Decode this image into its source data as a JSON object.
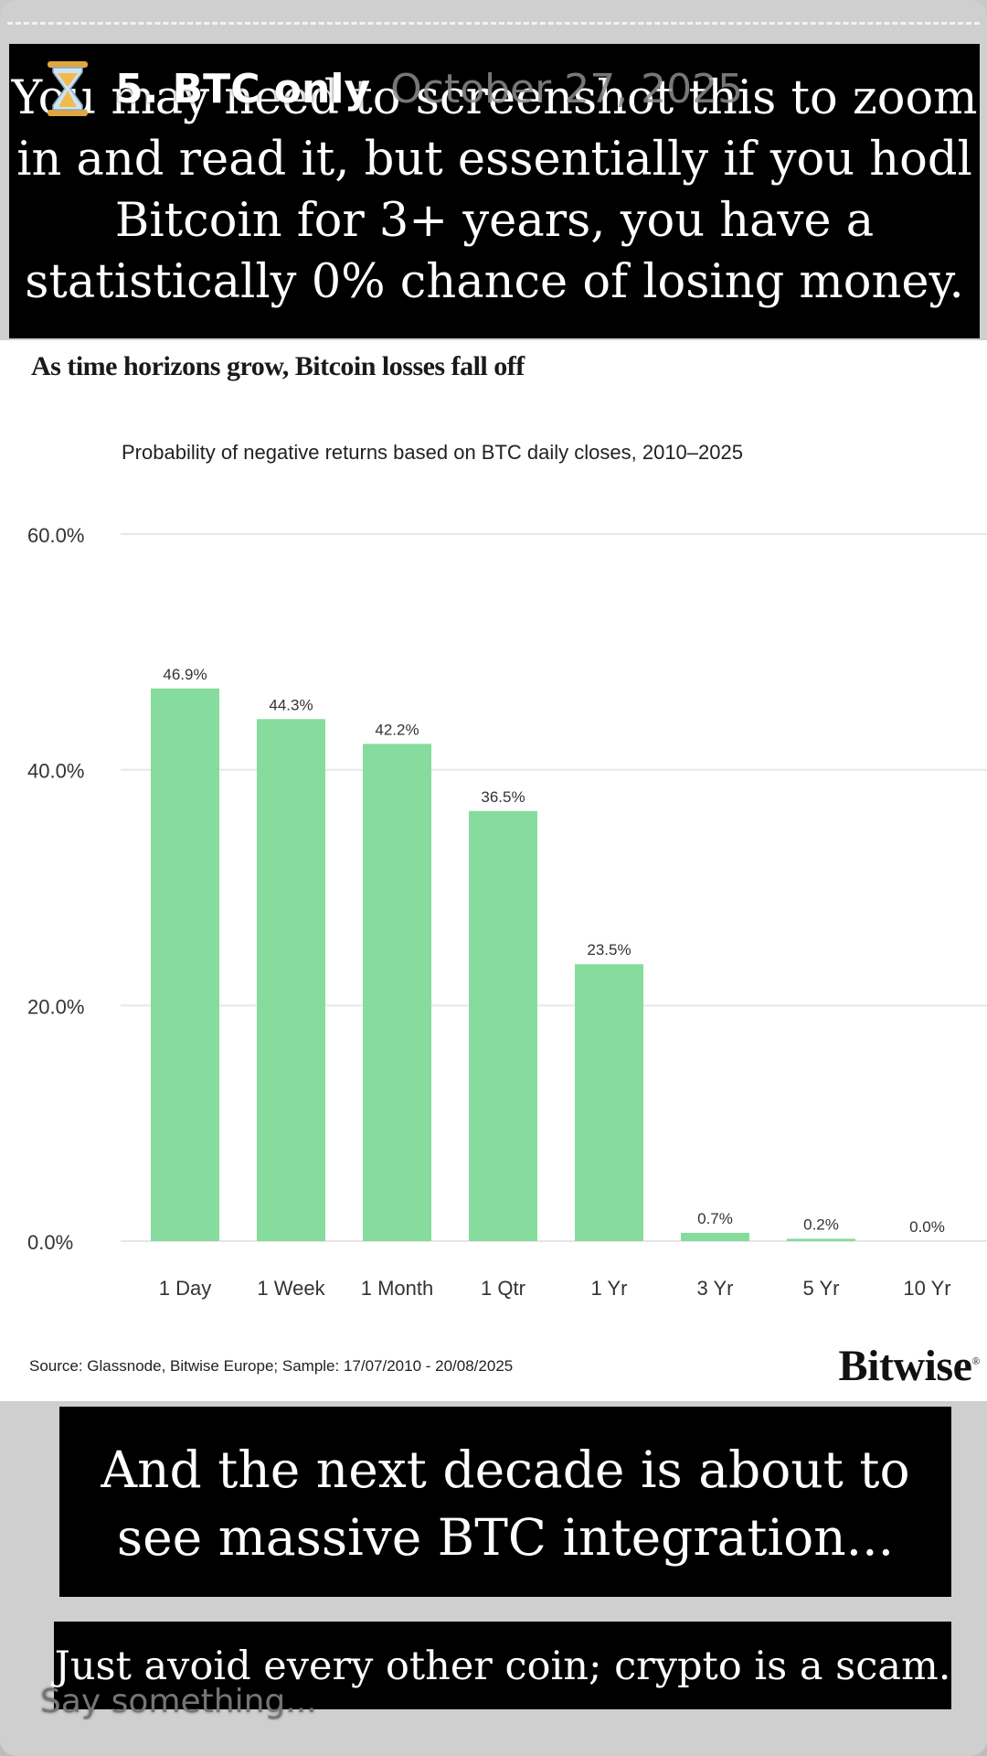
{
  "story": {
    "user_name": "5. BTC only",
    "date": "October 27, 2025",
    "caption_top": "You may need to screenshot this to zoom in and read it, but essentially if you hodl Bitcoin for 3+ years, you have a statistically 0% chance of losing money.",
    "caption_mid": "And the next decade is about to see massive BTC integration...",
    "caption_bottom": "Just avoid every other coin; crypto is a scam.",
    "reply_placeholder": "Say something..."
  },
  "chart_meta": {
    "source": "Source: Glassnode, Bitwise Europe; Sample: 17/07/2010 - 20/08/2025",
    "logo_text": "Bitwise",
    "logo_mark": "®"
  },
  "colors": {
    "bar": "#86dc9c",
    "grid": "#e6e6e6",
    "text": "#333333"
  },
  "chart_data": {
    "type": "bar",
    "title": "As time horizons grow, Bitcoin losses fall off",
    "subtitle": "Probability of negative returns based on BTC daily closes, 2010–2025",
    "categories": [
      "1 Day",
      "1 Week",
      "1 Month",
      "1 Qtr",
      "1 Yr",
      "3 Yr",
      "5 Yr",
      "10 Yr"
    ],
    "values": [
      46.9,
      44.3,
      42.2,
      36.5,
      23.5,
      0.7,
      0.2,
      0.0
    ],
    "data_labels": [
      "46.9%",
      "44.3%",
      "42.2%",
      "36.5%",
      "23.5%",
      "0.7%",
      "0.2%",
      "0.0%"
    ],
    "ylim": [
      0,
      60
    ],
    "yticks": [
      0,
      20,
      40,
      60
    ],
    "ytick_labels": [
      "0.0%",
      "20.0%",
      "40.0%",
      "60.0%"
    ],
    "xlabel": "",
    "ylabel": "",
    "grid": true
  }
}
